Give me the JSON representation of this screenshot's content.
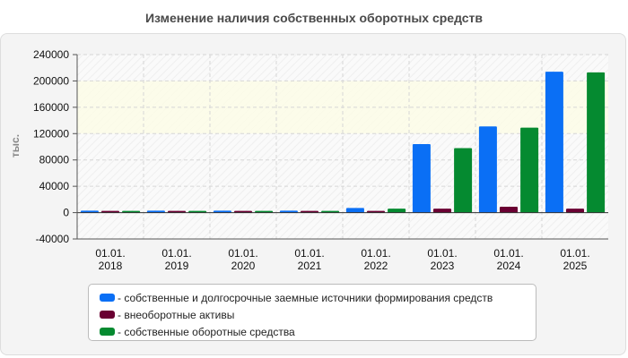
{
  "chart_data": {
    "type": "bar",
    "title": "Изменение наличия собственных оборотных средств",
    "xlabel": "",
    "ylabel": "тыс.",
    "ylim": [
      -40000,
      240000
    ],
    "y_ticks": [
      "240000",
      "200000",
      "160000",
      "120000",
      "80000",
      "40000",
      "0",
      "-40000"
    ],
    "grid": true,
    "legend_position": "bottom",
    "categories": [
      [
        "01.01.",
        "2018"
      ],
      [
        "01.01.",
        "2019"
      ],
      [
        "01.01.",
        "2020"
      ],
      [
        "01.01.",
        "2021"
      ],
      [
        "01.01.",
        "2022"
      ],
      [
        "01.01.",
        "2023"
      ],
      [
        "01.01.",
        "2024"
      ],
      [
        "01.01.",
        "2025"
      ]
    ],
    "series": [
      {
        "name": "- собственные и долгосрочные заемные источники формирования средств",
        "color": "#0a6ff5",
        "values": [
          3000,
          3000,
          3000,
          3000,
          7000,
          104000,
          131000,
          214000
        ]
      },
      {
        "name": "- внеоборотные активы",
        "color": "#6a0032",
        "values": [
          2000,
          2000,
          2000,
          2000,
          2000,
          6000,
          9000,
          6000
        ]
      },
      {
        "name": "- собственные оборотные средства",
        "color": "#058a30",
        "values": [
          2500,
          2500,
          2500,
          2500,
          6000,
          98000,
          129000,
          213000
        ]
      }
    ]
  }
}
